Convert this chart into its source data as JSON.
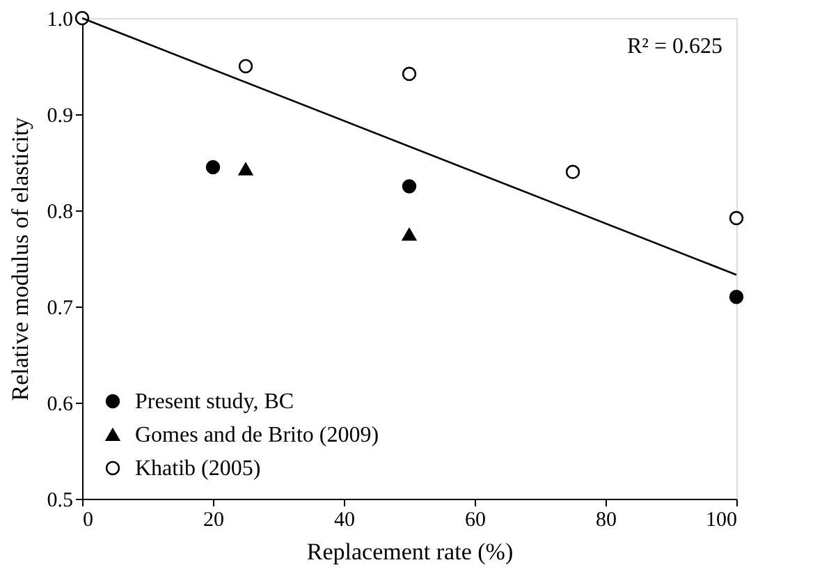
{
  "chart_data": {
    "type": "scatter",
    "xlabel": "Replacement rate (%)",
    "ylabel": "Relative modulus of elasticity",
    "xlim": [
      0,
      100
    ],
    "xticks": [
      0,
      20,
      40,
      60,
      80,
      100
    ],
    "ylim": [
      0.5,
      1.0
    ],
    "yticks": [
      {
        "value": 0.5,
        "label": "0.5"
      },
      {
        "value": 0.6,
        "label": "0.6"
      },
      {
        "value": 0.7,
        "label": "0.7"
      },
      {
        "value": 0.8,
        "label": "0.8"
      },
      {
        "value": 0.9,
        "label": "0.9"
      },
      {
        "value": 1.0,
        "label": "1.0"
      }
    ],
    "grid": false,
    "legend": "bottom left",
    "annotations": [
      "R² = 0.625"
    ],
    "series": [
      {
        "name": "Present study, BC",
        "color": "#000000",
        "marker": "circle",
        "x": [
          20,
          50,
          100
        ],
        "values": [
          0.845,
          0.825,
          0.71
        ]
      },
      {
        "name": "Gomes and de Brito (2009)",
        "color": "#000000",
        "marker": "triangle",
        "x": [
          25,
          50
        ],
        "values": [
          0.843,
          0.775
        ]
      },
      {
        "name": "Khatib (2005)",
        "color": "#ffffff",
        "marker": "circle",
        "x": [
          0,
          25,
          50,
          75,
          100
        ],
        "values": [
          1.0,
          0.95,
          0.942,
          0.84,
          0.792
        ]
      },
      {
        "type": "line",
        "color": "#000000",
        "line_style": "solid",
        "marker": "none",
        "x": [
          0,
          100
        ],
        "values": [
          1.0,
          0.733
        ]
      }
    ]
  }
}
